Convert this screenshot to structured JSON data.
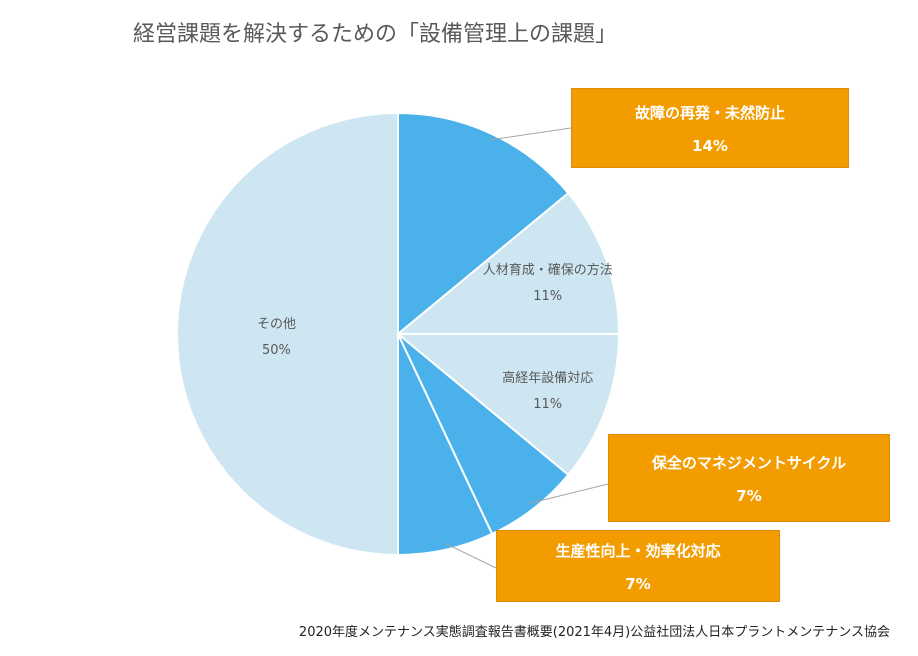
{
  "title": "経営課題を解決するための「設備管理上の課題」",
  "source": "2020年度メンテナンス実態調査報告書概要(2021年4月)公益社団法人日本プラントメンテナンス協会",
  "colors": {
    "highlight": "#4ab1ea",
    "base": "#cde6f2",
    "callout": "#f39c00"
  },
  "chart_data": {
    "type": "pie",
    "title": "経営課題を解決するための「設備管理上の課題」",
    "slices": [
      {
        "label": "故障の再発・未然防止",
        "value": 14,
        "value_label": "14%",
        "highlight": true
      },
      {
        "label": "人材育成・確保の方法",
        "value": 11,
        "value_label": "11%",
        "highlight": false
      },
      {
        "label": "高経年設備対応",
        "value": 11,
        "value_label": "11%",
        "highlight": false
      },
      {
        "label": "保全のマネジメントサイクル",
        "value": 7,
        "value_label": "7%",
        "highlight": true
      },
      {
        "label": "生産性向上・効率化対応",
        "value": 7,
        "value_label": "7%",
        "highlight": true
      },
      {
        "label": "その他",
        "value": 50,
        "value_label": "50%",
        "highlight": false
      }
    ]
  }
}
